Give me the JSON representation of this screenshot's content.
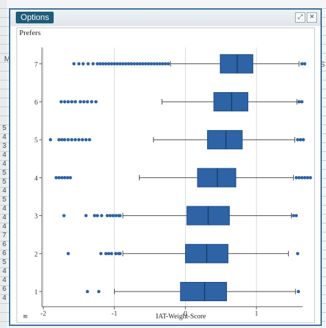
{
  "window": {
    "title": "Options"
  },
  "panel": {
    "label": "Prefers"
  },
  "background": {
    "col_letter_left": "M",
    "col_letter_right": "S",
    "row_numbers": [
      "5",
      "4",
      "3",
      "4",
      "4",
      "5",
      "5",
      "4",
      "5",
      "4",
      "4",
      "4",
      "7",
      "6",
      "6",
      "5",
      "4",
      "4",
      "6",
      "4"
    ]
  },
  "colors": {
    "box_fill": "#2e63a5",
    "box_stroke": "#1f4f8a",
    "outlier": "#2e63a5",
    "grid": "#d4d7da",
    "title_bg": "#1f5c78"
  },
  "chart_data": {
    "type": "boxplot",
    "orientation": "horizontal",
    "xlabel": "IAT-Weight-Score",
    "ylabel": "Prefers",
    "xlim": [
      -2.02,
      1.65
    ],
    "x_ticks": [
      -2,
      -1,
      0,
      1
    ],
    "y_ticks": [
      1,
      2,
      3,
      4,
      5,
      6,
      7
    ],
    "grid": true,
    "series": [
      {
        "category": 1,
        "whisker_low": -1.0,
        "q1": -0.07,
        "median": 0.27,
        "q3": 0.58,
        "whisker_high": 1.55,
        "outliers": [
          -1.38,
          -1.22,
          1.59
        ]
      },
      {
        "category": 2,
        "whisker_low": -0.88,
        "q1": 0.0,
        "median": 0.3,
        "q3": 0.6,
        "whisker_high": 1.45,
        "outliers": [
          -1.65,
          -1.19,
          -1.12,
          -1.08,
          -1.04,
          -0.98,
          -0.94,
          -0.92,
          1.58
        ]
      },
      {
        "category": 3,
        "whisker_low": -0.88,
        "q1": 0.02,
        "median": 0.32,
        "q3": 0.62,
        "whisker_high": 1.49,
        "outliers": [
          -1.71,
          -1.4,
          -1.28,
          -1.24,
          -1.18,
          -1.1,
          -1.06,
          -1.02,
          -0.98,
          -0.94,
          -0.92,
          1.52,
          1.56
        ]
      },
      {
        "category": 4,
        "whisker_low": -0.65,
        "q1": 0.17,
        "median": 0.45,
        "q3": 0.71,
        "whisker_high": 1.52,
        "outliers": [
          -1.82,
          -1.78,
          -1.74,
          -1.7,
          -1.66,
          -1.62,
          1.56,
          1.6,
          1.64,
          1.68,
          1.72,
          1.76
        ]
      },
      {
        "category": 5,
        "whisker_low": -0.45,
        "q1": 0.31,
        "median": 0.57,
        "q3": 0.8,
        "whisker_high": 1.54,
        "outliers": [
          -1.9,
          -1.78,
          -1.74,
          -1.7,
          -1.65,
          -1.6,
          -1.55,
          -1.5,
          -1.45,
          -1.4,
          -1.35,
          1.58,
          1.62,
          1.66
        ]
      },
      {
        "category": 6,
        "whisker_low": -0.33,
        "q1": 0.4,
        "median": 0.65,
        "q3": 0.88,
        "whisker_high": 1.57,
        "outliers": [
          -1.75,
          -1.7,
          -1.65,
          -1.6,
          -1.55,
          -1.48,
          -1.43,
          -1.38,
          -1.32,
          -1.26,
          1.6,
          1.64
        ]
      },
      {
        "category": 7,
        "whisker_low": -0.21,
        "q1": 0.49,
        "median": 0.73,
        "q3": 0.95,
        "whisker_high": 1.6,
        "outliers": [
          -1.57,
          -1.5,
          -1.44,
          -1.37,
          -1.3,
          -1.24,
          -1.2,
          -1.16,
          -1.12,
          -1.08,
          -1.04,
          -1.0,
          -0.96,
          -0.92,
          -0.88,
          -0.84,
          -0.8,
          -0.76,
          -0.72,
          -0.68,
          -0.64,
          -0.6,
          -0.56,
          -0.52,
          -0.48,
          -0.44,
          -0.4,
          -0.36,
          -0.32,
          -0.28,
          -0.24,
          1.64,
          1.68
        ]
      }
    ]
  }
}
